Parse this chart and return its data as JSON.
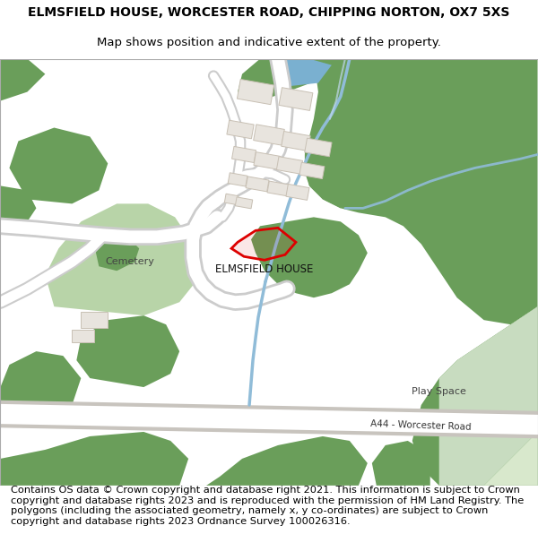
{
  "title": "ELMSFIELD HOUSE, WORCESTER ROAD, CHIPPING NORTON, OX7 5XS",
  "subtitle": "Map shows position and indicative extent of the property.",
  "footer_text": "Contains OS data © Crown copyright and database right 2021. This information is subject to Crown copyright and database rights 2023 and is reproduced with the permission of HM Land Registry. The polygons (including the associated geometry, namely x, y co-ordinates) are subject to Crown copyright and database rights 2023 Ordnance Survey 100026316.",
  "map_bg": "#f7f5f2",
  "green_dark": "#6a9e5a",
  "green_light": "#b8d4a8",
  "blue_stream": "#90bcd8",
  "blue_pond": "#7ab0d0",
  "road_fill": "#ffffff",
  "road_edge": "#cccccc",
  "building_fill": "#e8e4de",
  "building_edge": "#c8c0b4",
  "plot_edge": "#dd0000",
  "plot_fill": "#dd000018",
  "label_elmsfield": "ELMSFIELD HOUSE",
  "label_cemetery": "Cemetery",
  "label_playspace": "Play Space",
  "label_a44": "A44 - Worcester Road",
  "title_fontsize": 10,
  "subtitle_fontsize": 9.5,
  "footer_fontsize": 8.2
}
